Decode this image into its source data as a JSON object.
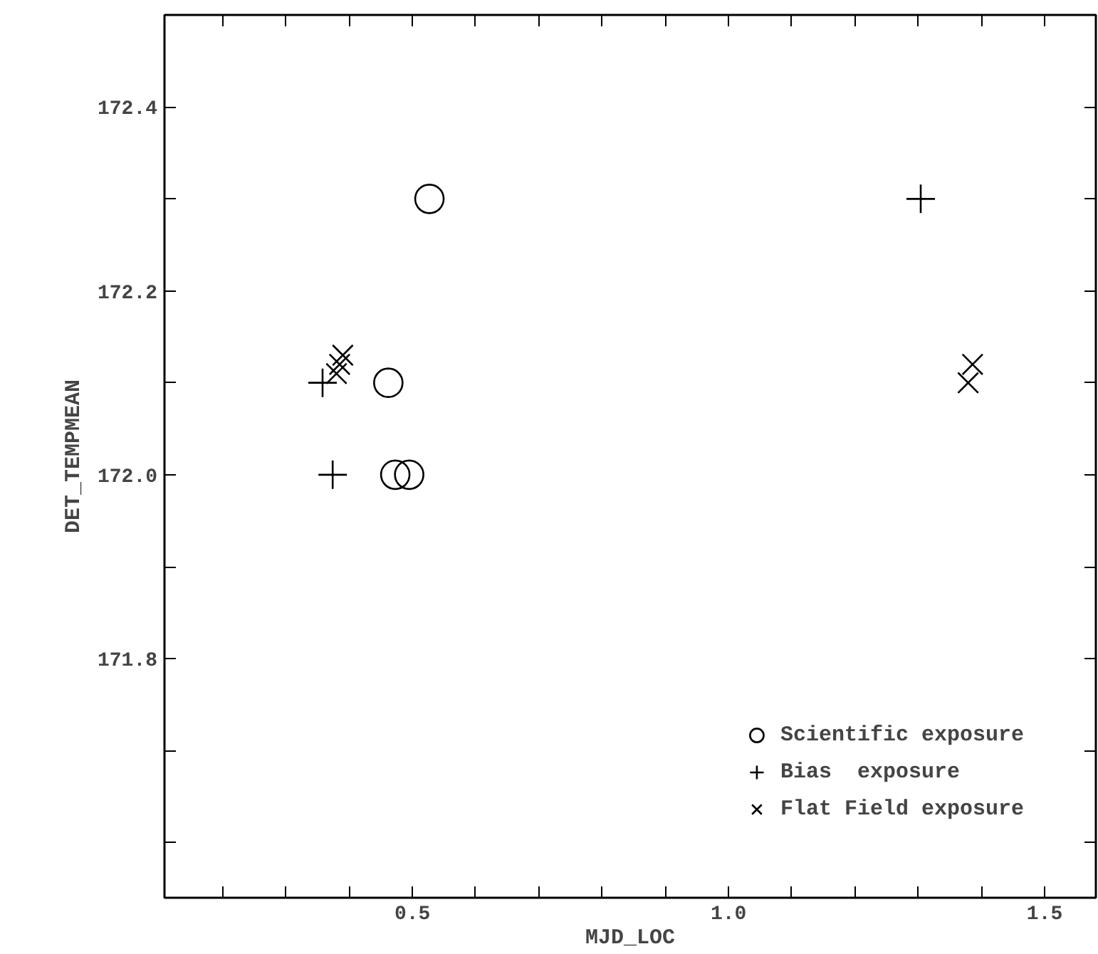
{
  "chart_data": {
    "type": "scatter",
    "xlabel": "MJD_LOC",
    "ylabel": "DET_TEMPMEAN",
    "xlim": [
      0.108,
      1.581
    ],
    "ylim": [
      171.54,
      172.5
    ],
    "xticks": [
      {
        "value": 0.2,
        "label": null
      },
      {
        "value": 0.3,
        "label": null
      },
      {
        "value": 0.4,
        "label": null
      },
      0.5,
      {
        "value": 0.6,
        "label": null
      },
      {
        "value": 0.7,
        "label": null
      },
      {
        "value": 0.8,
        "label": null
      },
      {
        "value": 0.9,
        "label": null
      },
      {
        "value": 1.0,
        "label": "1.0"
      },
      {
        "value": 1.1,
        "label": null
      },
      {
        "value": 1.2,
        "label": null
      },
      {
        "value": 1.3,
        "label": null
      },
      {
        "value": 1.4,
        "label": null
      },
      1.5
    ],
    "yticks": [
      {
        "value": 171.6,
        "label": null
      },
      {
        "value": 171.7,
        "label": null
      },
      171.8,
      {
        "value": 171.9,
        "label": null
      },
      {
        "value": 172.0,
        "label": "172.0"
      },
      {
        "value": 172.1,
        "label": null
      },
      172.2,
      {
        "value": 172.3,
        "label": null
      },
      172.4
    ],
    "grid": false,
    "legend": "bottom right",
    "series": [
      {
        "name": "Scientific exposure",
        "color": "#000000",
        "marker": "circle",
        "x": [
          0.527,
          0.462,
          0.473,
          0.495
        ],
        "values": [
          172.3,
          172.1,
          172.0,
          172.0
        ]
      },
      {
        "name": "Bias  exposure",
        "color": "#000000",
        "marker": "cross",
        "x": [
          0.358,
          0.374,
          1.304
        ],
        "values": [
          172.1,
          172.0,
          172.3
        ]
      },
      {
        "name": "Flat Field exposure",
        "color": "#000000",
        "marker": "x",
        "x": [
          0.38,
          0.385,
          0.39,
          1.379,
          1.386
        ],
        "values": [
          172.11,
          172.12,
          172.13,
          172.1,
          172.12
        ]
      }
    ]
  }
}
